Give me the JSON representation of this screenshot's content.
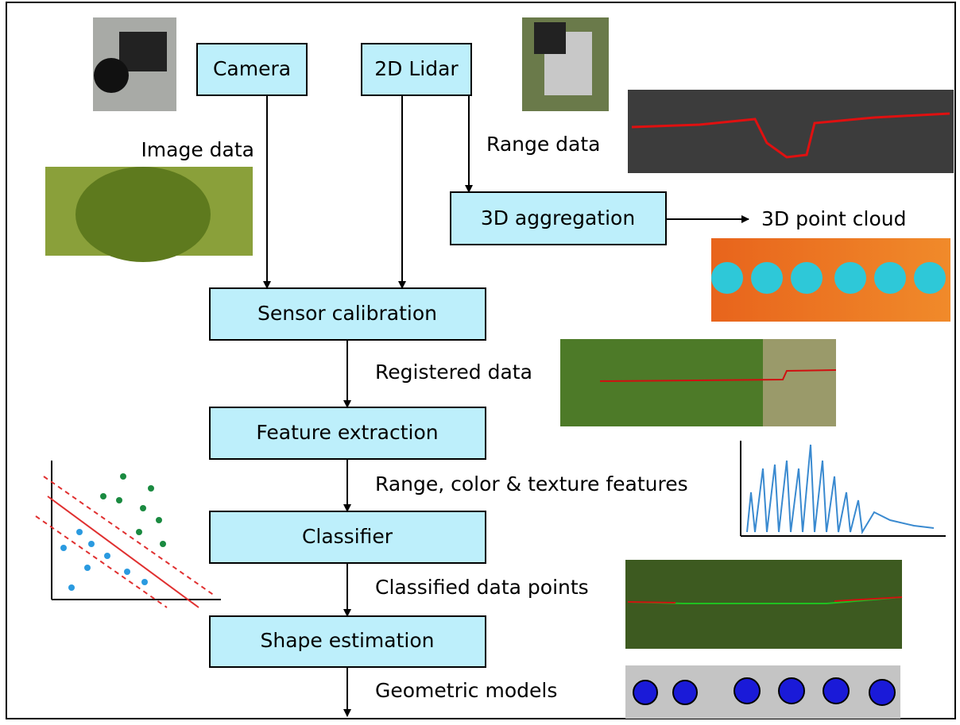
{
  "nodes": [
    {
      "id": "camera",
      "label": "Camera"
    },
    {
      "id": "lidar",
      "label": "2D Lidar"
    },
    {
      "id": "aggregation",
      "label": "3D aggregation"
    },
    {
      "id": "calibration",
      "label": "Sensor calibration"
    },
    {
      "id": "features",
      "label": "Feature extraction"
    },
    {
      "id": "classifier",
      "label": "Classifier"
    },
    {
      "id": "shape",
      "label": "Shape estimation"
    }
  ],
  "edge_labels": [
    "Image data",
    "Range data",
    "3D point cloud",
    "Registered data",
    "Range, color & texture features",
    "Classified data points",
    "Geometric models"
  ]
}
